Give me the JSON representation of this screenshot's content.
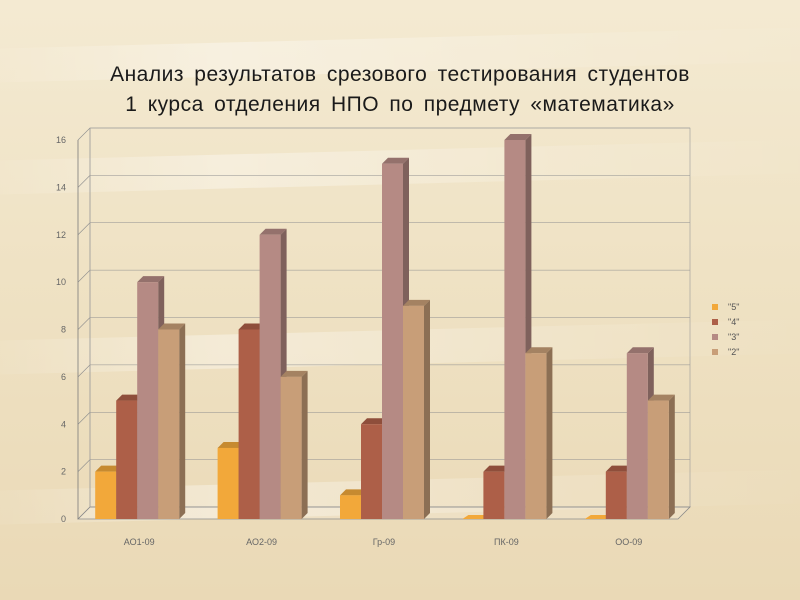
{
  "title": {
    "line1": "Анализ  результатов  срезового  тестирования  студентов",
    "line2": "1 курса отделения  НПО  по  предмету  «математика»"
  },
  "chart_data": {
    "type": "bar",
    "categories": [
      "АО1-09",
      "АО2-09",
      "Гр-09",
      "ПК-09",
      "ОО-09"
    ],
    "series": [
      {
        "name": "5",
        "color": "#f2a83a",
        "values": [
          2,
          3,
          1,
          0,
          0
        ]
      },
      {
        "name": "4",
        "color": "#ad5f48",
        "values": [
          5,
          8,
          4,
          2,
          2
        ]
      },
      {
        "name": "3",
        "color": "#b58a84",
        "values": [
          10,
          12,
          15,
          16,
          7
        ]
      },
      {
        "name": "2",
        "color": "#c89e78",
        "values": [
          8,
          6,
          9,
          7,
          5
        ]
      }
    ],
    "ylim": [
      0,
      16
    ],
    "yticks": [
      0,
      2,
      4,
      6,
      8,
      10,
      12,
      14,
      16
    ],
    "grid": true,
    "legend": "right"
  }
}
